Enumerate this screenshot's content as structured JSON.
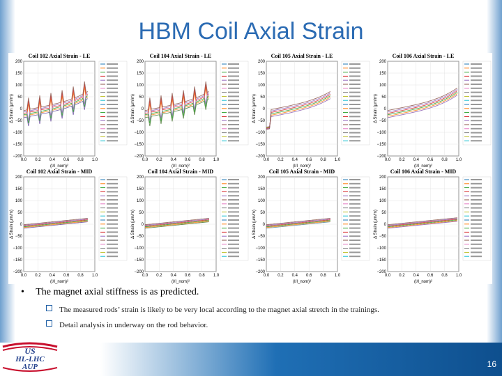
{
  "slide": {
    "title": "HBM Coil Axial Strain",
    "page_number": "16"
  },
  "plots": [
    {
      "title": "Coil 102 Axial Strain - LE",
      "ylabel": "Δ Strain (μm/m)",
      "xlabel": "(I/I_nom)²",
      "color": "#6b4fa0"
    },
    {
      "title": "Coil 104 Axial Strain - LE",
      "ylabel": "Δ Strain (μm/m)",
      "xlabel": "(I/I_nom)²",
      "color": "#4f7b3a"
    },
    {
      "title": "Coil 105 Axial Strain - LE",
      "ylabel": "Δ Strain (μm/m)",
      "xlabel": "(I/I_nom)²",
      "color": "#8a5bb0"
    },
    {
      "title": "Coil 106 Axial Strain - LE",
      "ylabel": "Δ Strain (μm/m)",
      "xlabel": "(I/I_nom)²",
      "color": "#8a5bb0"
    },
    {
      "title": "Coil 102 Axial Strain - MID",
      "ylabel": "Δ Strain (μm/m)",
      "xlabel": "(I/I_nom)²",
      "color": "#6b4fa0"
    },
    {
      "title": "Coil 104 Axial Strain - MID",
      "ylabel": "Δ Strain (μm/m)",
      "xlabel": "(I/I_nom)²",
      "color": "#4f7b3a"
    },
    {
      "title": "Coil 105 Axial Strain - MID",
      "ylabel": "Δ Strain (μm/m)",
      "xlabel": "(I/I_nom)²",
      "color": "#5a8a9a"
    },
    {
      "title": "Coil 106 Axial Strain - MID",
      "ylabel": "Δ Strain (μm/m)",
      "xlabel": "(I/I_nom)²",
      "color": "#8a5bb0"
    }
  ],
  "axes": {
    "y_ticks": [
      "200",
      "150",
      "100",
      "50",
      "0",
      "−50",
      "−100",
      "−150",
      "−200"
    ],
    "x_ticks": [
      "0.0",
      "0.2",
      "0.4",
      "0.6",
      "0.8",
      "1.0"
    ]
  },
  "bullets": {
    "main": "The magnet axial stiffness is as predicted.",
    "sub": [
      "The measured rods’ strain is likely to be very local according to the magnet axial stretch in the trainings.",
      "Detail analysis in underway on the rod behavior."
    ]
  },
  "logo": {
    "line1": "US",
    "line2": "HL-LHC",
    "line3": "AUP"
  }
}
